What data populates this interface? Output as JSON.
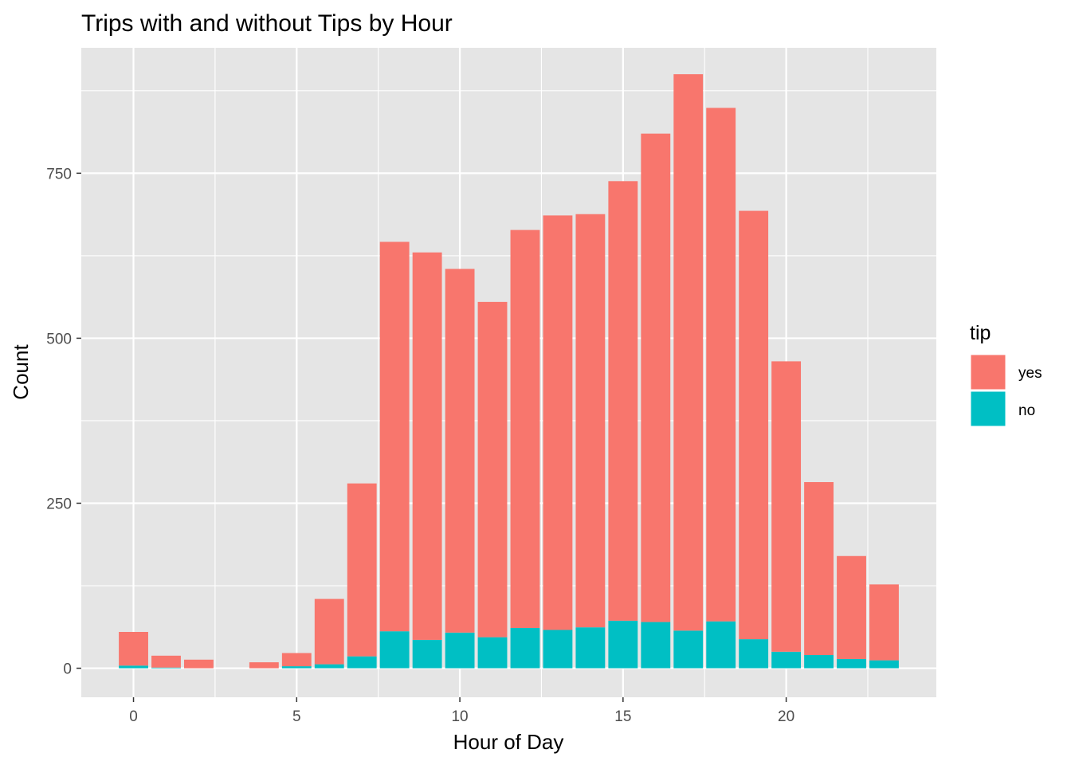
{
  "chart_data": {
    "type": "bar",
    "stacked": true,
    "title": "Trips with and without Tips by Hour",
    "xlabel": "Hour of Day",
    "ylabel": "Count",
    "x": [
      0,
      1,
      2,
      4,
      5,
      6,
      7,
      8,
      9,
      10,
      11,
      12,
      13,
      14,
      15,
      16,
      17,
      18,
      19,
      20,
      21,
      22,
      23
    ],
    "series": [
      {
        "name": "yes",
        "color": "#F8766D",
        "values": [
          51,
          18,
          13,
          9,
          20,
          99,
          262,
          590,
          587,
          551,
          508,
          603,
          628,
          626,
          666,
          740,
          843,
          778,
          649,
          440,
          262,
          156,
          115
        ]
      },
      {
        "name": "no",
        "color": "#00BFC4",
        "values": [
          4,
          1,
          0,
          0,
          3,
          6,
          18,
          56,
          43,
          54,
          47,
          61,
          58,
          62,
          72,
          70,
          57,
          71,
          44,
          25,
          20,
          14,
          12
        ]
      }
    ],
    "xlim": [
      -1.6,
      24.6
    ],
    "ylim": [
      -44,
      940
    ],
    "xticks": [
      0,
      5,
      10,
      15,
      20
    ],
    "yticks": [
      0,
      250,
      500,
      750
    ],
    "legend": {
      "title": "tip",
      "position": "right",
      "entries": [
        "yes",
        "no"
      ]
    },
    "grid": true,
    "panel_background": "#E5E5E5"
  }
}
